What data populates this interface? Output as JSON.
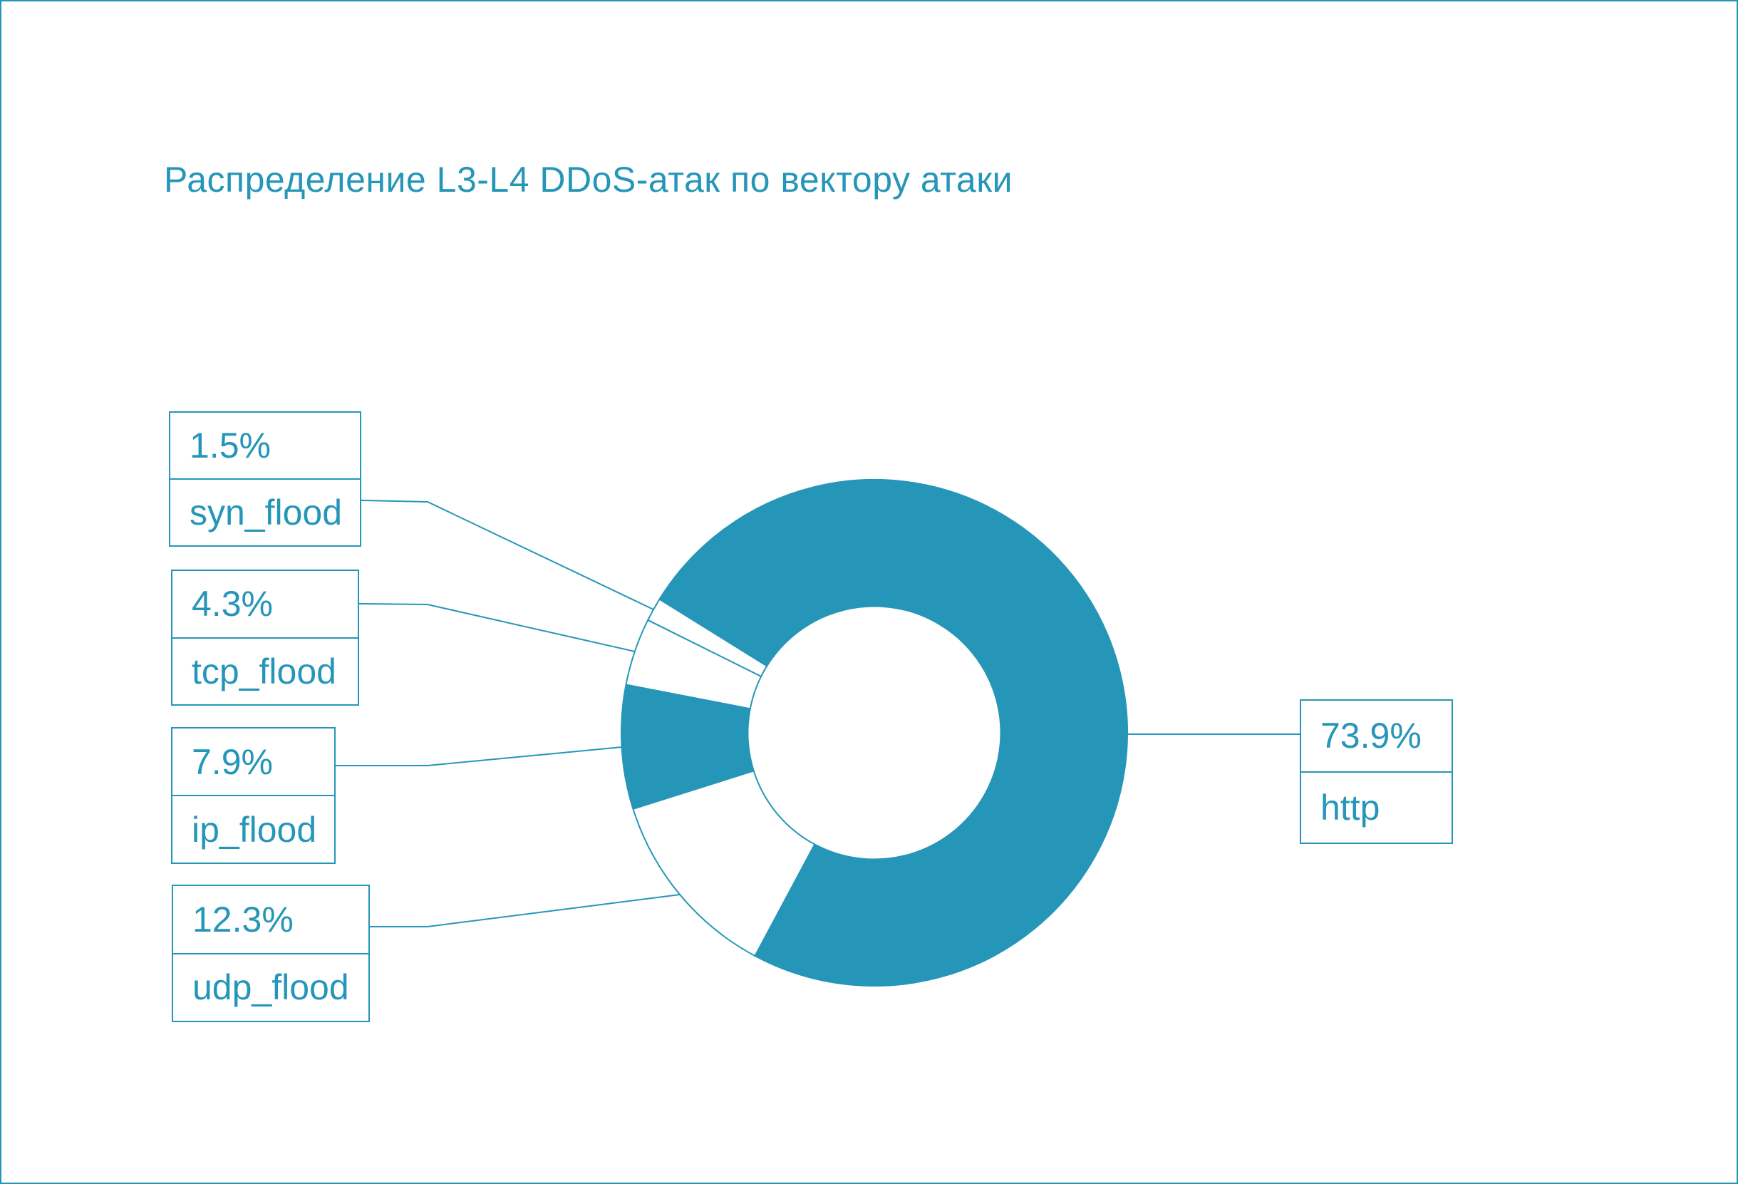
{
  "page": {
    "background": "#ffffff",
    "border_color": "#2596b8"
  },
  "chart_data": {
    "type": "pie",
    "subtype": "donut",
    "title": "Распределение L3-L4 DDoS-атак по вектору атаки",
    "categories": [
      "http",
      "udp_flood",
      "ip_flood",
      "tcp_flood",
      "syn_flood"
    ],
    "values": [
      73.9,
      12.3,
      7.9,
      4.3,
      1.5
    ],
    "value_labels": [
      "73.9%",
      "12.3%",
      "7.9%",
      "4.3%",
      "1.5%"
    ],
    "unit": "%",
    "hole_ratio": 0.5,
    "rotation_deg": 15,
    "arc_order": [
      "http",
      "syn_flood",
      "tcp_flood",
      "ip_flood",
      "udp_flood"
    ],
    "slice_fill_by_category": {
      "http": "#2596b8",
      "udp_flood": "#ffffff",
      "ip_flood": "#2596b8",
      "tcp_flood": "#ffffff",
      "syn_flood": "#ffffff"
    },
    "outline_color": "#2596b8",
    "labels_style": "outside boxed, percent over name, leader lines",
    "legend_position": "none",
    "grid": false
  }
}
